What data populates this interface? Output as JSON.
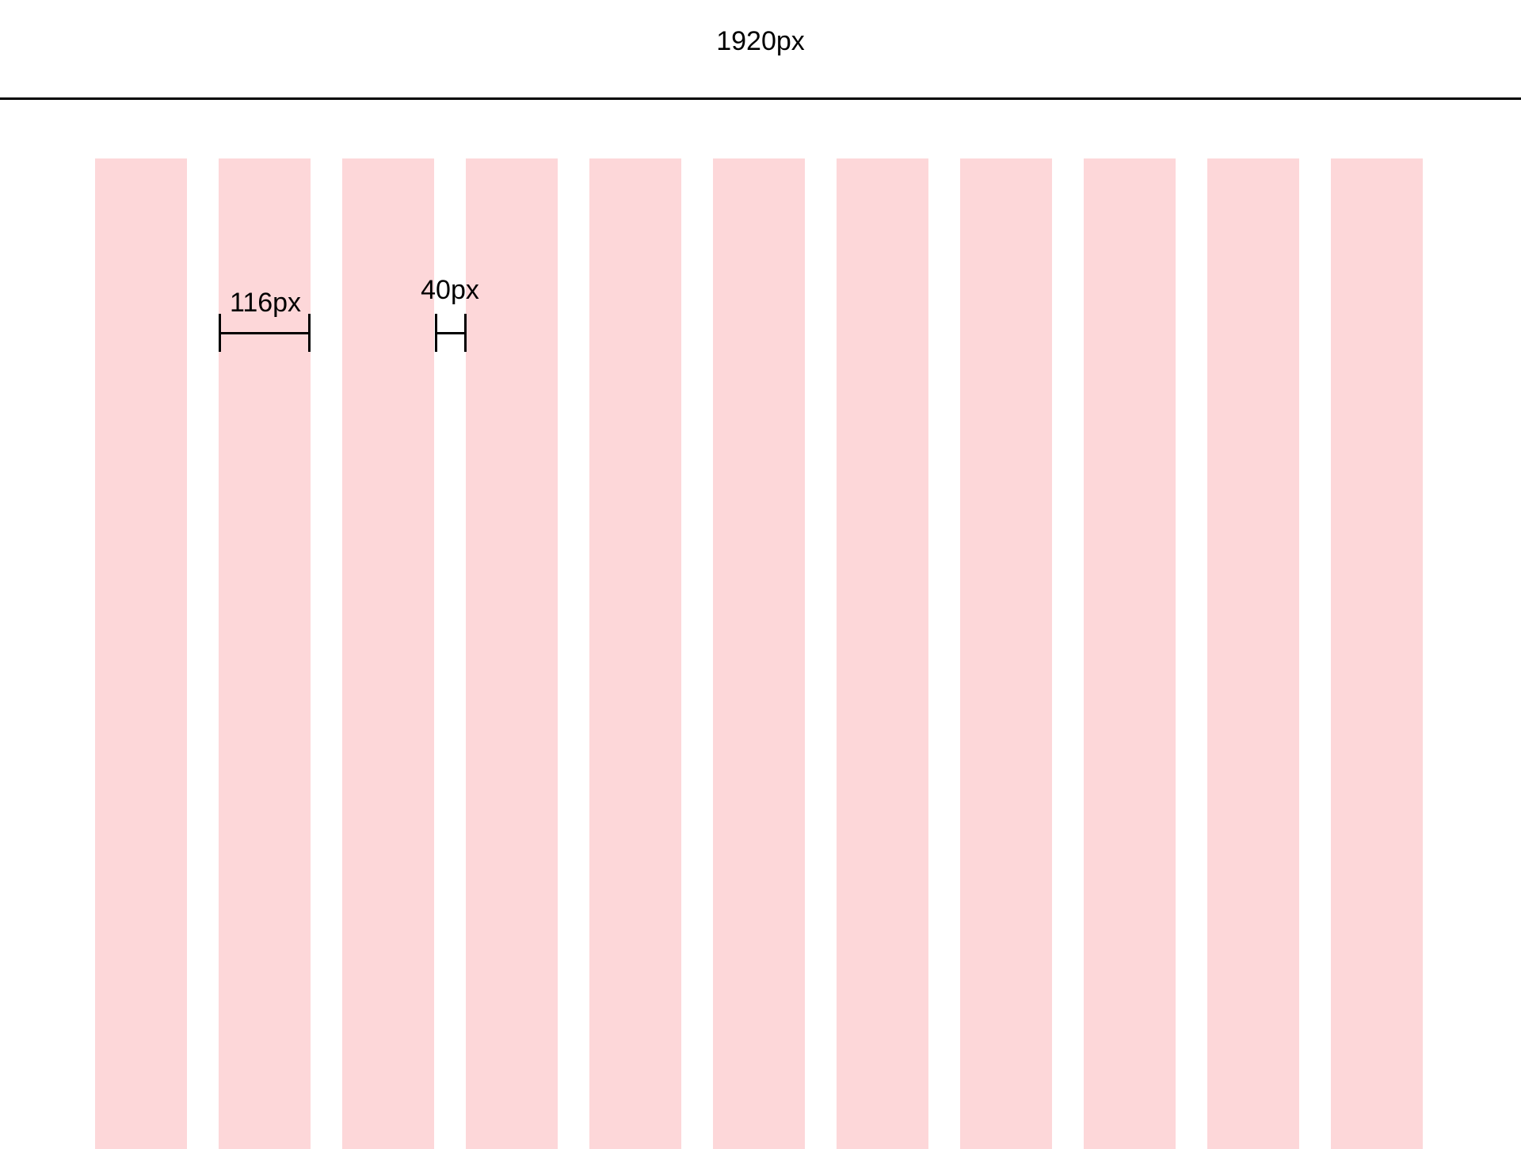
{
  "page_width_label": "1920px",
  "grid": {
    "column_count": 11,
    "column_color": "#fdd7d9",
    "column_width_label": "116px",
    "gutter_width_label": "40px"
  }
}
